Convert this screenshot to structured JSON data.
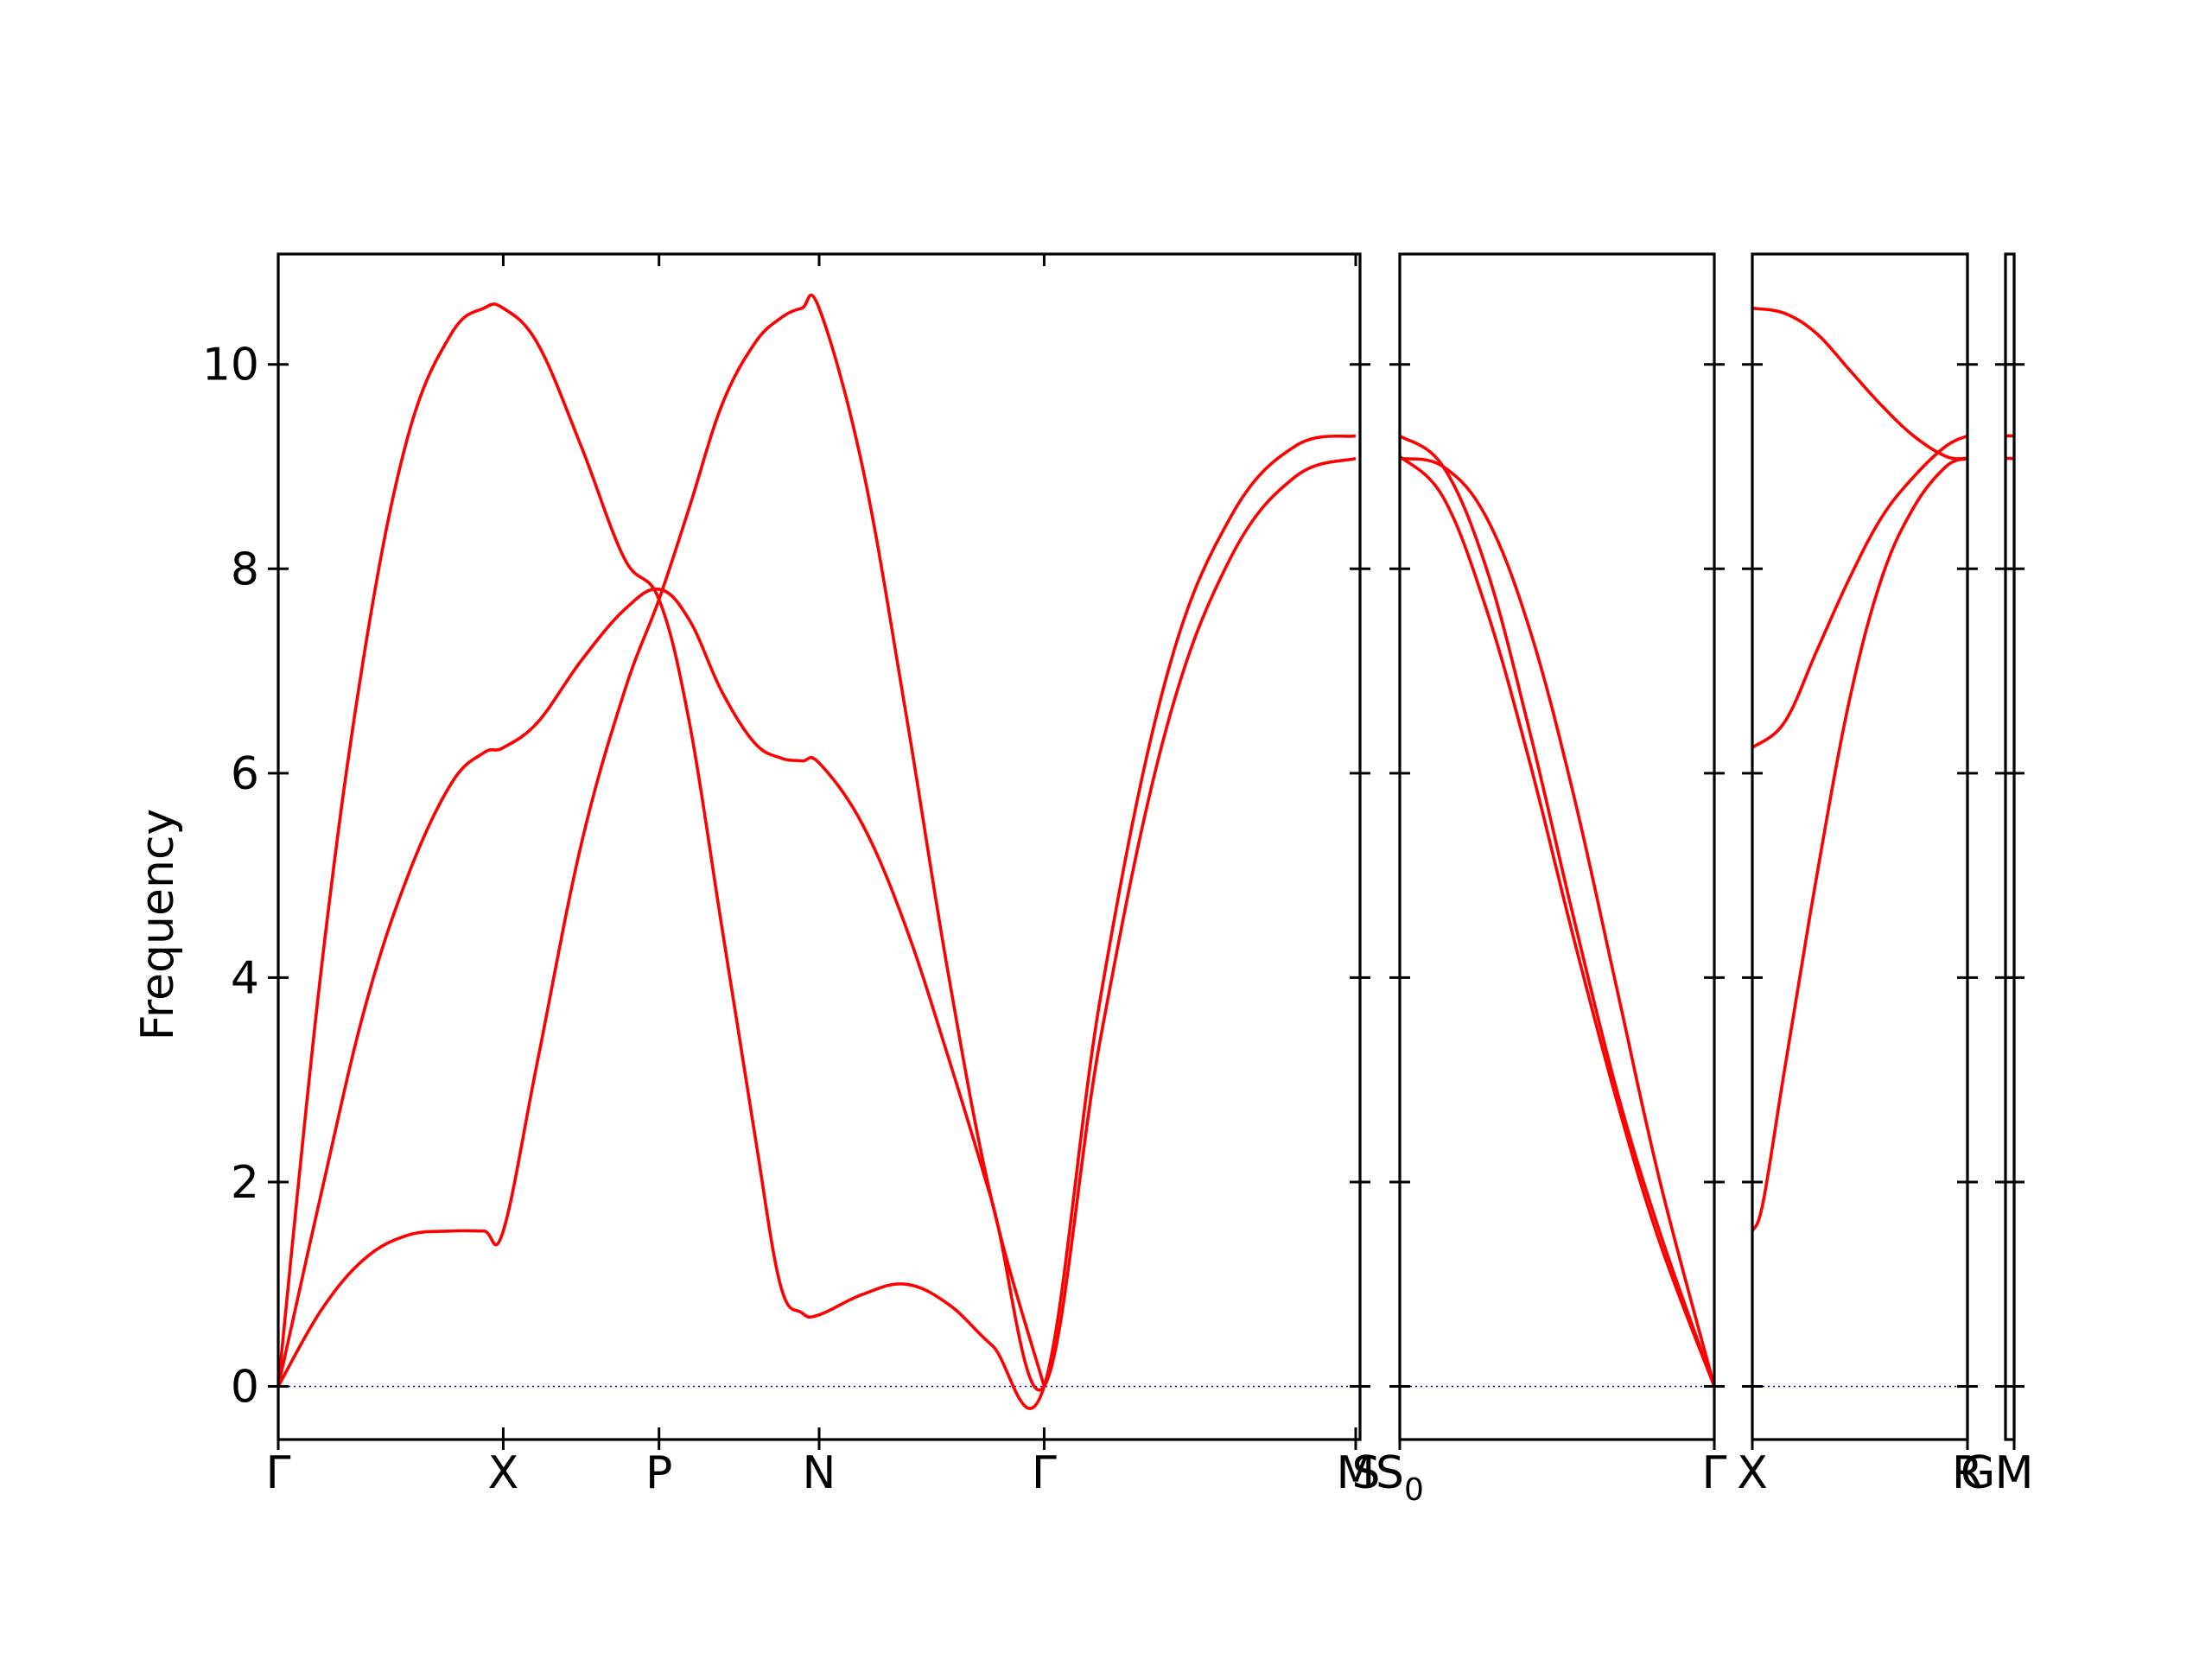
{
  "chart_data": {
    "type": "line",
    "ylabel": "Frequency",
    "ylim": [
      -0.52,
      11.08
    ],
    "yticks": [
      0,
      2,
      4,
      6,
      8,
      10
    ],
    "zero_line_color": "#0000aa",
    "band_color": "#ff0000",
    "panels": [
      {
        "xlim": [
          0,
          5.0
        ],
        "labels": [
          {
            "x": 0,
            "text": "Γ"
          },
          {
            "x": 1.04,
            "text": "X"
          },
          {
            "x": 1.76,
            "text": "P"
          },
          {
            "x": 2.5,
            "text": "N"
          },
          {
            "x": 3.54,
            "text": "Γ"
          },
          {
            "x": 4.98,
            "text": "M"
          },
          {
            "x": 4.98,
            "text": "S"
          }
        ],
        "series": [
          {
            "x": [
              0,
              0.2,
              0.4,
              0.6,
              0.8,
              0.95,
              1.04,
              1.2,
              1.4,
              1.6,
              1.76,
              1.9,
              2.05,
              2.2,
              2.32,
              2.42,
              2.5,
              2.7,
              2.9,
              3.1,
              3.3,
              3.54,
              3.8,
              4.1,
              4.4,
              4.7,
              4.98
            ],
            "y": [
              0,
              4.1,
              7.2,
              9.3,
              10.3,
              10.55,
              10.55,
              10.2,
              9.2,
              8.1,
              7.7,
              6.5,
              4.5,
              2.5,
              1.0,
              0.72,
              0.7,
              0.9,
              1.0,
              0.8,
              0.4,
              0,
              3.8,
              6.9,
              8.5,
              9.2,
              9.3
            ]
          },
          {
            "x": [
              0,
              0.2,
              0.4,
              0.6,
              0.8,
              0.95,
              1.04,
              1.2,
              1.4,
              1.6,
              1.76,
              1.9,
              2.05,
              2.2,
              2.32,
              2.42,
              2.5,
              2.7,
              2.9,
              3.1,
              3.3,
              3.54,
              3.8,
              4.1,
              4.4,
              4.7,
              4.98
            ],
            "y": [
              0,
              1.9,
              3.7,
              5.0,
              5.9,
              6.2,
              6.25,
              6.5,
              7.1,
              7.6,
              7.8,
              7.5,
              6.8,
              6.3,
              6.15,
              6.12,
              6.1,
              5.5,
              4.5,
              3.2,
              1.8,
              0,
              3.4,
              6.4,
              8.1,
              8.9,
              9.08
            ]
          },
          {
            "x": [
              0,
              0.2,
              0.4,
              0.6,
              0.8,
              0.95,
              1.04,
              1.2,
              1.4,
              1.6,
              1.76,
              1.9,
              2.05,
              2.2,
              2.32,
              2.42,
              2.5,
              2.7,
              2.9,
              3.1,
              3.3,
              3.54
            ],
            "y": [
              0,
              0.75,
              1.25,
              1.48,
              1.52,
              1.52,
              1.52,
              3.2,
              5.3,
              6.8,
              7.7,
              8.6,
              9.6,
              10.2,
              10.45,
              10.55,
              10.55,
              9.0,
              6.6,
              4.0,
              1.8,
              0
            ]
          }
        ]
      },
      {
        "xlim": [
          0,
          1.45
        ],
        "labels": [
          {
            "x": 0,
            "text": "S",
            "sub": "0"
          },
          {
            "x": 1.45,
            "text": "Γ"
          }
        ],
        "series": [
          {
            "x": [
              0,
              0.2,
              0.4,
              0.6,
              0.8,
              1.0,
              1.2,
              1.45
            ],
            "y": [
              9.3,
              9.0,
              8.0,
              6.4,
              4.6,
              2.9,
              1.5,
              0
            ]
          },
          {
            "x": [
              0,
              0.2,
              0.4,
              0.6,
              0.8,
              1.0,
              1.2,
              1.45
            ],
            "y": [
              9.1,
              8.7,
              7.6,
              6.1,
              4.4,
              2.8,
              1.4,
              0
            ]
          },
          {
            "x": [
              0,
              0.2,
              0.4,
              0.6,
              0.8,
              1.0,
              1.2,
              1.45
            ],
            "y": [
              9.08,
              9.0,
              8.5,
              7.4,
              5.8,
              3.9,
              2.0,
              0
            ]
          }
        ]
      },
      {
        "xlim": [
          0,
          1.0
        ],
        "labels": [
          {
            "x": 0,
            "text": "X"
          },
          {
            "x": 1.0,
            "text": "R"
          },
          {
            "x": 1.0,
            "text": "G"
          }
        ],
        "series": [
          {
            "x": [
              0,
              0.15,
              0.3,
              0.45,
              0.6,
              0.75,
              0.9,
              1.0
            ],
            "y": [
              10.55,
              10.5,
              10.3,
              9.95,
              9.6,
              9.3,
              9.1,
              9.08
            ]
          },
          {
            "x": [
              0,
              0.15,
              0.3,
              0.45,
              0.6,
              0.75,
              0.9,
              1.0
            ],
            "y": [
              6.25,
              6.5,
              7.2,
              7.9,
              8.5,
              8.9,
              9.2,
              9.3
            ]
          },
          {
            "x": [
              0,
              0.05,
              0.15,
              0.3,
              0.45,
              0.6,
              0.75,
              0.9,
              1.0
            ],
            "y": [
              1.52,
              1.8,
              3.1,
              5.0,
              6.7,
              7.9,
              8.6,
              9.0,
              9.08
            ]
          }
        ]
      },
      {
        "xlim": [
          0,
          0.04
        ],
        "labels": [
          {
            "x": 0.04,
            "text": "M"
          }
        ],
        "series": [
          {
            "x": [
              0,
              0.04
            ],
            "y": [
              9.3,
              9.3
            ]
          },
          {
            "x": [
              0,
              0.04
            ],
            "y": [
              9.08,
              9.08
            ]
          }
        ]
      }
    ]
  }
}
